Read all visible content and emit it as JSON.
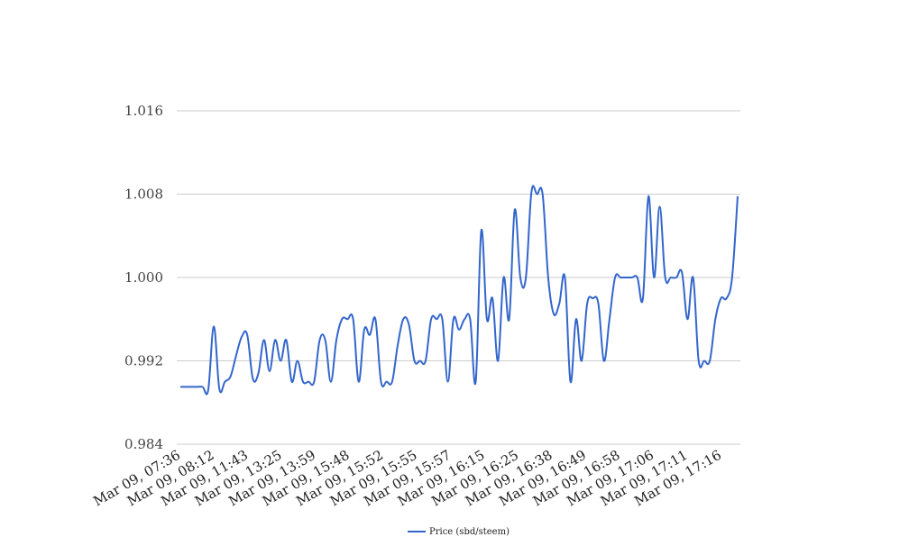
{
  "chart_data": {
    "type": "line",
    "y_ticks": [
      "1.016",
      "1.008",
      "1.000",
      "0.992",
      "0.984"
    ],
    "ylim": [
      0.984,
      1.016
    ],
    "x_tick_labels": [
      "Mar 09, 07:36",
      "Mar 09, 08:12",
      "Mar 09, 11:43",
      "Mar 09, 13:25",
      "Mar 09, 13:59",
      "Mar 09, 15:48",
      "Mar 09, 15:52",
      "Mar 09, 15:55",
      "Mar 09, 15:57",
      "Mar 09, 16:15",
      "Mar 09, 16:25",
      "Mar 09, 16:38",
      "Mar 09, 16:49",
      "Mar 09, 16:58",
      "Mar 09, 17:06",
      "Mar 09, 17:11",
      "Mar 09, 17:16"
    ],
    "grid": true,
    "legend_position": "bottom-center",
    "series": [
      {
        "name": "Price (sbd/steem)",
        "color": "#3366cc",
        "values": [
          0.9895,
          0.9895,
          0.9895,
          0.9895,
          0.9895,
          0.9892,
          0.9953,
          0.9893,
          0.99,
          0.9905,
          0.9925,
          0.9943,
          0.9945,
          0.9903,
          0.9908,
          0.994,
          0.991,
          0.994,
          0.992,
          0.994,
          0.99,
          0.992,
          0.99,
          0.99,
          0.99,
          0.994,
          0.994,
          0.99,
          0.994,
          0.996,
          0.996,
          0.996,
          0.99,
          0.995,
          0.9945,
          0.996,
          0.99,
          0.99,
          0.99,
          0.9935,
          0.996,
          0.9955,
          0.992,
          0.992,
          0.992,
          0.996,
          0.996,
          0.996,
          0.99,
          0.996,
          0.995,
          0.996,
          0.996,
          0.99,
          1.0045,
          0.996,
          0.998,
          0.992,
          1.0,
          0.996,
          1.0065,
          1.0,
          1.0,
          1.0082,
          1.008,
          1.008,
          1.0,
          0.9965,
          0.9975,
          1.0,
          0.99,
          0.996,
          0.992,
          0.9975,
          0.998,
          0.9975,
          0.992,
          0.996,
          1.0,
          1.0,
          1.0,
          1.0,
          1.0,
          0.998,
          1.0078,
          1.0,
          1.0068,
          1.0,
          1.0,
          1.0,
          1.0005,
          0.996,
          1.0,
          0.992,
          0.992,
          0.992,
          0.996,
          0.998,
          0.998,
          1.0,
          1.0078
        ]
      }
    ]
  }
}
